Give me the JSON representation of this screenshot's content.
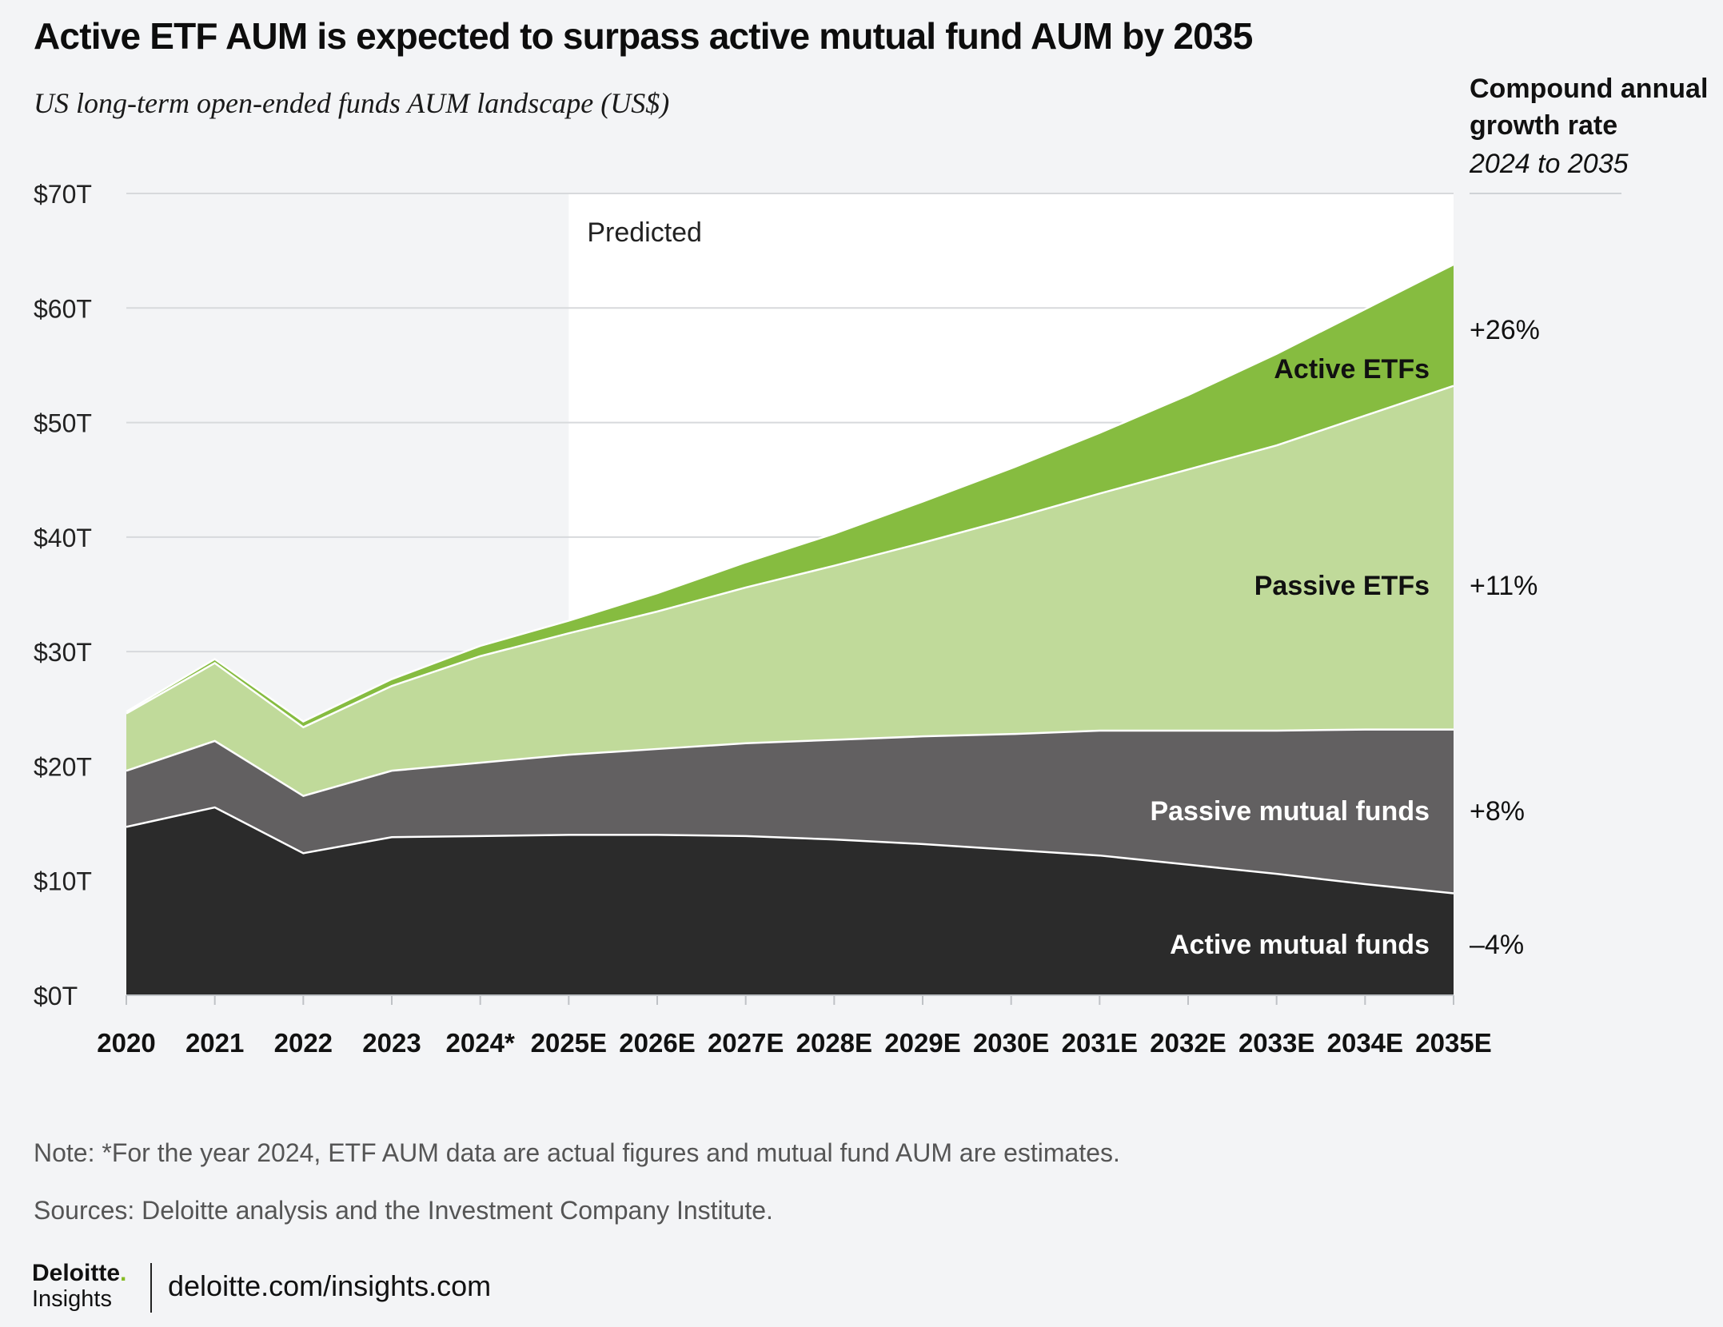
{
  "header": {
    "title": "Active ETF AUM is expected to surpass active mutual fund AUM by 2035",
    "subtitle": "US long-term open-ended funds AUM landscape (US$)"
  },
  "cagr": {
    "heading": "Compound annual growth rate",
    "period": "2024 to 2035"
  },
  "colors": {
    "active_mutual_funds": "#2b2b2b",
    "passive_mutual_funds": "#626061",
    "passive_etfs": "#c0da9a",
    "active_etfs": "#86bc40",
    "predicted_bg": "#ffffff",
    "page_bg": "#f3f4f6"
  },
  "chart_data": {
    "type": "area",
    "stacked": true,
    "categories": [
      "2020",
      "2021",
      "2022",
      "2023",
      "2024*",
      "2025E",
      "2026E",
      "2027E",
      "2028E",
      "2029E",
      "2030E",
      "2031E",
      "2032E",
      "2033E",
      "2034E",
      "2035E"
    ],
    "y_tick_labels": [
      "$0T",
      "$10T",
      "$20T",
      "$30T",
      "$40T",
      "$50T",
      "$60T",
      "$70T"
    ],
    "ylim": [
      0,
      70
    ],
    "y_ticks": [
      0,
      10,
      20,
      30,
      40,
      50,
      60,
      70
    ],
    "predicted_label": "Predicted",
    "predicted_start_index": 5,
    "series": [
      {
        "name": "Active mutual funds",
        "label": "Active mutual funds",
        "cagr": "–4%",
        "color_key": "active_mutual_funds",
        "label_color": "#ffffff",
        "values": [
          14.7,
          16.4,
          12.4,
          13.8,
          13.9,
          14.0,
          14.0,
          13.9,
          13.6,
          13.2,
          12.7,
          12.2,
          11.4,
          10.6,
          9.7,
          8.9
        ]
      },
      {
        "name": "Passive mutual funds",
        "label": "Passive mutual funds",
        "cagr": "+8%",
        "color_key": "passive_mutual_funds",
        "label_color": "#ffffff",
        "values": [
          4.9,
          5.8,
          5.0,
          5.8,
          6.4,
          7.0,
          7.5,
          8.1,
          8.7,
          9.4,
          10.1,
          10.9,
          11.7,
          12.5,
          13.5,
          14.3
        ]
      },
      {
        "name": "Passive ETFs",
        "label": "Passive ETFs",
        "cagr": "+11%",
        "color_key": "passive_etfs",
        "label_color": "#111111",
        "values": [
          5.0,
          6.8,
          6.0,
          7.4,
          9.3,
          10.6,
          12.0,
          13.6,
          15.2,
          16.9,
          18.8,
          20.7,
          22.8,
          24.9,
          27.4,
          30.0
        ]
      },
      {
        "name": "Active ETFs",
        "label": "Active ETFs",
        "cagr": "+26%",
        "color_key": "active_etfs",
        "label_color": "#111111",
        "values": [
          0.15,
          0.35,
          0.5,
          0.6,
          0.9,
          1.1,
          1.6,
          2.2,
          2.8,
          3.6,
          4.4,
          5.3,
          6.5,
          8.0,
          9.3,
          10.6
        ]
      }
    ]
  },
  "footer": {
    "note": "Note: *For the year 2024, ETF AUM data are actual figures and mutual fund AUM are estimates.",
    "sources": "Sources: Deloitte analysis and the Investment Company Institute.",
    "brand_name": "Deloitte",
    "brand_dot": ".",
    "brand_sub": "Insights",
    "url": "deloitte.com/insights.com"
  }
}
